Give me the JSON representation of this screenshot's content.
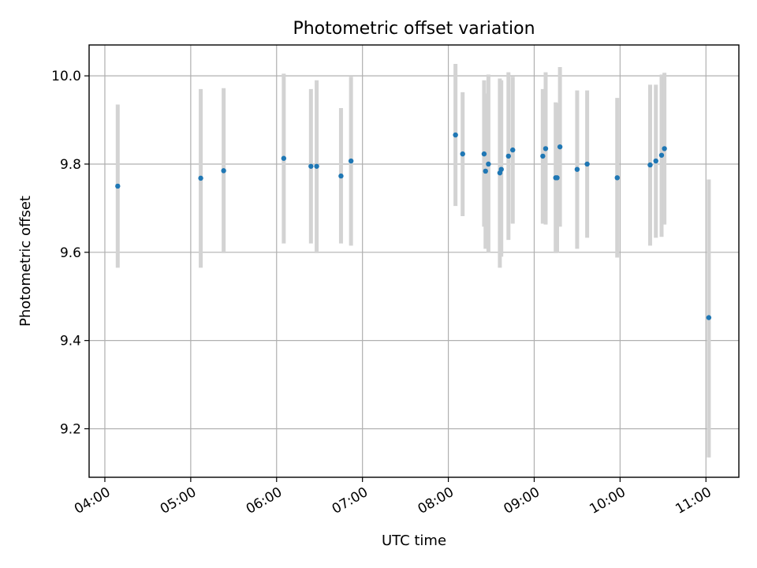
{
  "chart_data": {
    "type": "scatter",
    "title": "Photometric offset variation",
    "xlabel": "UTC time",
    "ylabel": "Photometric offset",
    "xlim": [
      "03:49",
      "11:23"
    ],
    "ylim": [
      9.09,
      10.07
    ],
    "x_ticks": [
      "04:00",
      "05:00",
      "06:00",
      "07:00",
      "08:00",
      "09:00",
      "10:00",
      "11:00"
    ],
    "y_ticks": [
      "9.2",
      "9.4",
      "9.6",
      "9.8",
      "10.0"
    ],
    "grid": true,
    "series": [
      {
        "marker_color": "#1f77b4",
        "errorbar_color": "#d3d3d3",
        "points": [
          {
            "t": "04:09",
            "y": 9.75,
            "lo": 9.565,
            "hi": 9.935
          },
          {
            "t": "05:07",
            "y": 9.768,
            "lo": 9.565,
            "hi": 9.97
          },
          {
            "t": "05:23",
            "y": 9.785,
            "lo": 9.598,
            "hi": 9.972
          },
          {
            "t": "06:05",
            "y": 9.813,
            "lo": 9.62,
            "hi": 10.005
          },
          {
            "t": "06:24",
            "y": 9.795,
            "lo": 9.62,
            "hi": 9.97
          },
          {
            "t": "06:28",
            "y": 9.795,
            "lo": 9.598,
            "hi": 9.99
          },
          {
            "t": "06:45",
            "y": 9.773,
            "lo": 9.62,
            "hi": 9.927
          },
          {
            "t": "06:52",
            "y": 9.807,
            "lo": 9.615,
            "hi": 9.998
          },
          {
            "t": "08:05",
            "y": 9.866,
            "lo": 9.705,
            "hi": 10.027
          },
          {
            "t": "08:10",
            "y": 9.823,
            "lo": 9.682,
            "hi": 9.963
          },
          {
            "t": "08:25",
            "y": 9.823,
            "lo": 9.658,
            "hi": 9.99
          },
          {
            "t": "08:26",
            "y": 9.784,
            "lo": 9.608,
            "hi": 9.96
          },
          {
            "t": "08:28",
            "y": 9.8,
            "lo": 9.6,
            "hi": 10.003
          },
          {
            "t": "08:36",
            "y": 9.78,
            "lo": 9.565,
            "hi": 9.994
          },
          {
            "t": "08:37",
            "y": 9.788,
            "lo": 9.59,
            "hi": 9.99
          },
          {
            "t": "08:42",
            "y": 9.818,
            "lo": 9.628,
            "hi": 10.008
          },
          {
            "t": "08:45",
            "y": 9.832,
            "lo": 9.665,
            "hi": 9.998
          },
          {
            "t": "09:06",
            "y": 9.818,
            "lo": 9.665,
            "hi": 9.97
          },
          {
            "t": "09:08",
            "y": 9.835,
            "lo": 9.663,
            "hi": 10.008
          },
          {
            "t": "09:15",
            "y": 9.769,
            "lo": 9.598,
            "hi": 9.94
          },
          {
            "t": "09:16",
            "y": 9.769,
            "lo": 9.6,
            "hi": 9.938
          },
          {
            "t": "09:18",
            "y": 9.839,
            "lo": 9.658,
            "hi": 10.02
          },
          {
            "t": "09:30",
            "y": 9.788,
            "lo": 9.608,
            "hi": 9.967
          },
          {
            "t": "09:37",
            "y": 9.8,
            "lo": 9.633,
            "hi": 9.967
          },
          {
            "t": "09:58",
            "y": 9.769,
            "lo": 9.588,
            "hi": 9.95
          },
          {
            "t": "10:21",
            "y": 9.798,
            "lo": 9.615,
            "hi": 9.98
          },
          {
            "t": "10:25",
            "y": 9.807,
            "lo": 9.633,
            "hi": 9.98
          },
          {
            "t": "10:29",
            "y": 9.82,
            "lo": 9.635,
            "hi": 10.003
          },
          {
            "t": "10:31",
            "y": 9.835,
            "lo": 9.663,
            "hi": 10.007
          },
          {
            "t": "11:02",
            "y": 9.452,
            "lo": 9.135,
            "hi": 9.765
          }
        ]
      }
    ]
  }
}
